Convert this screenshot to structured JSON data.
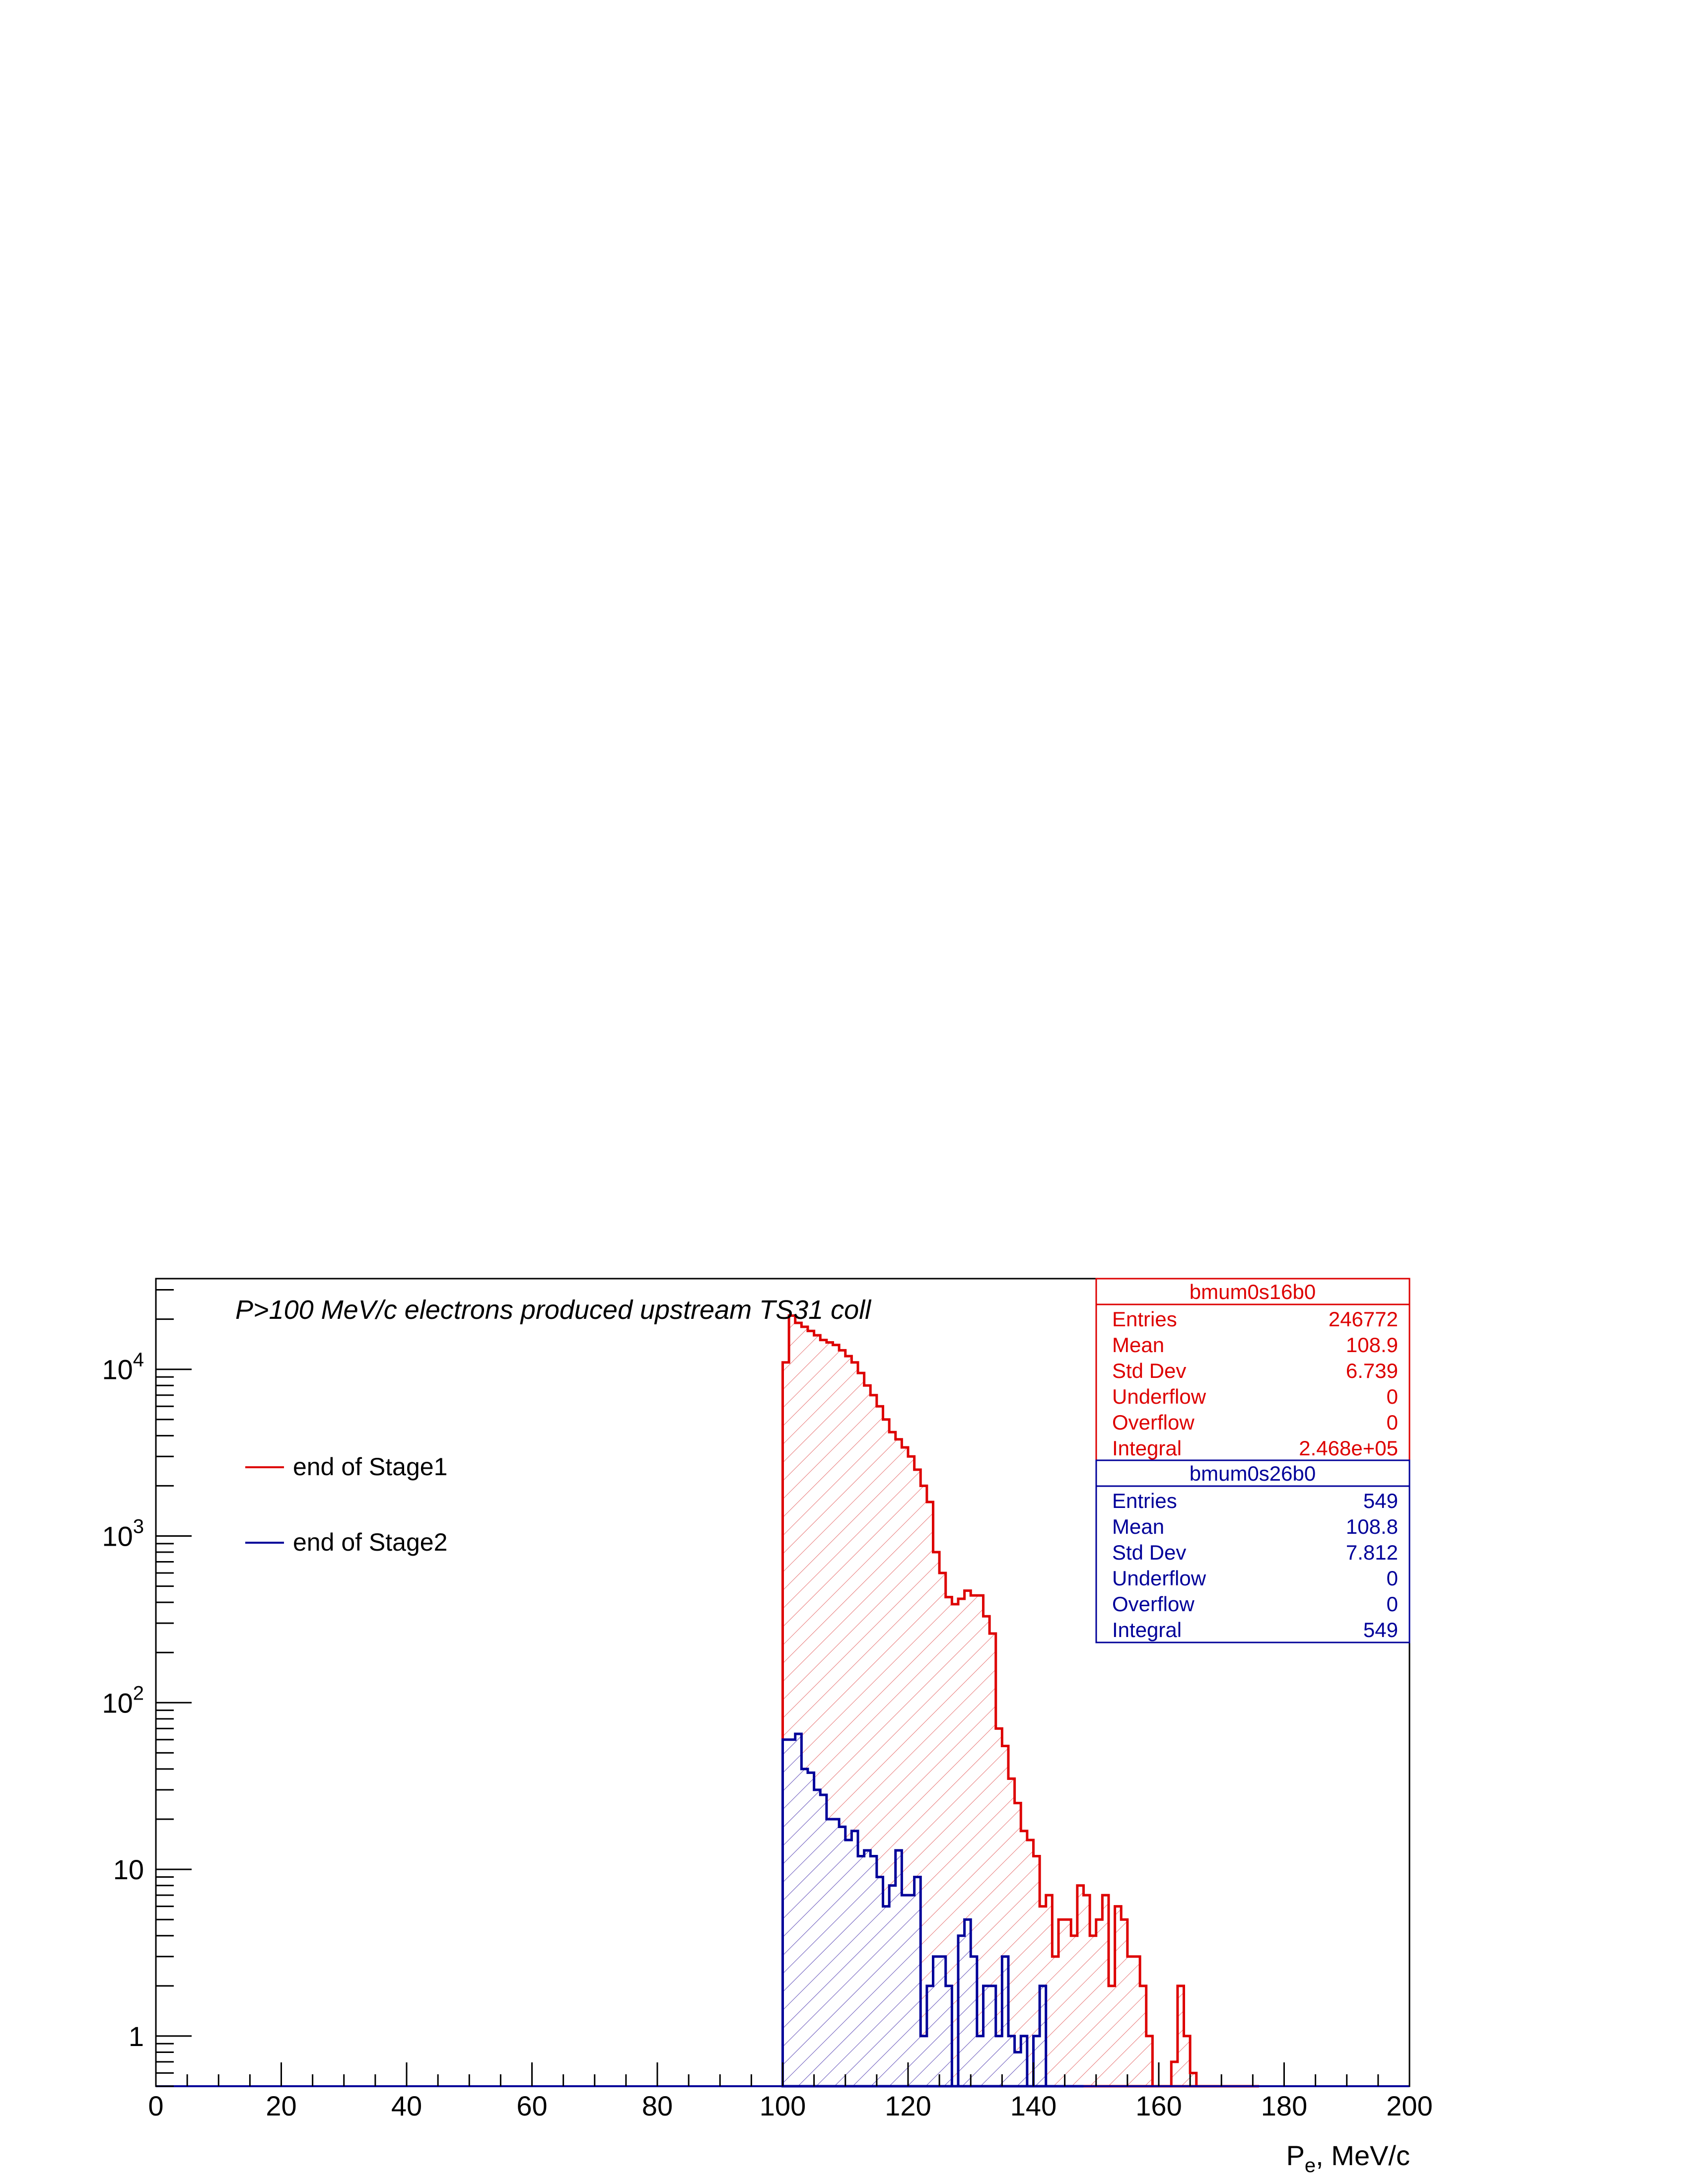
{
  "chart_data": {
    "type": "histogram",
    "title": "P>100 MeV/c electrons produced upstream TS31 coll",
    "xlabel": "P_e, MeV/c",
    "ylabel": "",
    "xlim": [
      0,
      200
    ],
    "ylim": [
      0.5,
      35000
    ],
    "y_scale": "log",
    "bin_width": 1,
    "x_ticks": [
      "0",
      "20",
      "40",
      "60",
      "80",
      "100",
      "120",
      "140",
      "160",
      "180",
      "200"
    ],
    "y_ticks": [
      {
        "value": 1,
        "base": "1",
        "exp": ""
      },
      {
        "value": 10,
        "base": "10",
        "exp": ""
      },
      {
        "value": 100,
        "base": "10",
        "exp": "2"
      },
      {
        "value": 1000,
        "base": "10",
        "exp": "3"
      },
      {
        "value": 10000,
        "base": "10",
        "exp": "4"
      }
    ],
    "legend": {
      "placement": "upper-left"
    },
    "series": [
      {
        "name": "end of Stage1",
        "color": "#dd0000",
        "fill": "hatched",
        "x_start": 100,
        "values": [
          11000,
          21000,
          19000,
          18000,
          17000,
          16000,
          15000,
          14500,
          14000,
          13000,
          12000,
          11000,
          9500,
          8000,
          7000,
          6000,
          5000,
          4200,
          3800,
          3400,
          3000,
          2500,
          2000,
          1600,
          800,
          600,
          430,
          390,
          420,
          470,
          440,
          440,
          330,
          260,
          70,
          55,
          35,
          25,
          17,
          15,
          12,
          6,
          7,
          3,
          5,
          5,
          4,
          8,
          7,
          4,
          5,
          7,
          2,
          6,
          5,
          3,
          3,
          2,
          1,
          0,
          0,
          0,
          0.7,
          2,
          1,
          0.6,
          0,
          0,
          0,
          0,
          0,
          0,
          0,
          0,
          0,
          0
        ]
      },
      {
        "name": "end of Stage2",
        "color": "#000099",
        "fill": "hatched",
        "x_start": 100,
        "values": [
          60,
          60,
          65,
          40,
          38,
          30,
          28,
          20,
          20,
          18,
          15,
          17,
          12,
          13,
          12,
          9,
          6,
          8,
          13,
          7,
          7,
          9,
          1,
          2,
          3,
          3,
          2,
          0,
          4,
          5,
          3,
          1,
          2,
          2,
          1,
          3,
          1,
          0.8,
          1,
          0,
          1,
          2,
          0.5,
          0,
          0,
          0,
          0,
          0
        ]
      }
    ],
    "stats_boxes": [
      {
        "name": "bmum0s16b0",
        "color": "#dd0000",
        "rows": [
          {
            "label": "Entries",
            "value": "246772"
          },
          {
            "label": "Mean",
            "value": "108.9"
          },
          {
            "label": "Std Dev",
            "value": "6.739"
          },
          {
            "label": "Underflow",
            "value": "0"
          },
          {
            "label": "Overflow",
            "value": "0"
          },
          {
            "label": "Integral",
            "value": "2.468e+05"
          }
        ]
      },
      {
        "name": "bmum0s26b0",
        "color": "#000099",
        "rows": [
          {
            "label": "Entries",
            "value": "549"
          },
          {
            "label": "Mean",
            "value": "108.8"
          },
          {
            "label": "Std Dev",
            "value": "7.812"
          },
          {
            "label": "Underflow",
            "value": "0"
          },
          {
            "label": "Overflow",
            "value": "0"
          },
          {
            "label": "Integral",
            "value": "549"
          }
        ]
      }
    ]
  }
}
